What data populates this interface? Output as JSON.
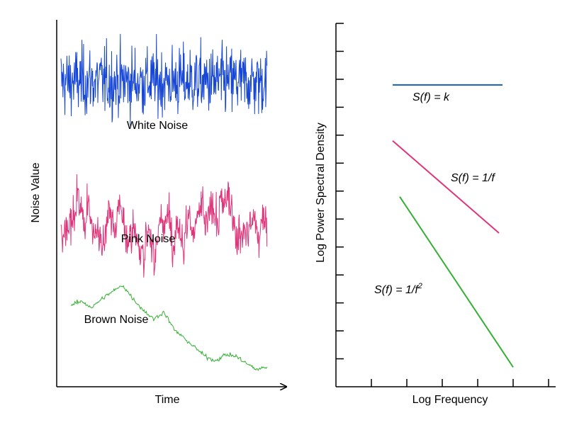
{
  "chart_data": [
    {
      "type": "line",
      "title": "",
      "xlabel": "Time",
      "ylabel": "Noise Value",
      "colors": {
        "white": "#1747d6",
        "pink": "#e0357a",
        "brown": "#35b035"
      },
      "series": [
        {
          "name": "White Noise",
          "color": "#1747d6",
          "label": "White Noise",
          "kind": "white",
          "x_range": [
            0,
            100
          ],
          "level": 3.3,
          "amplitude": 0.55
        },
        {
          "name": "Pink Noise",
          "color": "#e0357a",
          "label": "Pink Noise",
          "kind": "pink",
          "x_range": [
            0,
            100
          ],
          "level": 1.7,
          "amplitude": 0.55
        },
        {
          "name": "Brown Noise",
          "color": "#35b035",
          "label": "Brown Noise",
          "kind": "brown",
          "x_range": [
            5,
            100
          ],
          "x": [
            5,
            10,
            15,
            20,
            25,
            30,
            35,
            40,
            45,
            50,
            55,
            60,
            65,
            70,
            75,
            80,
            85,
            90,
            95,
            100
          ],
          "y": [
            0.78,
            0.82,
            0.75,
            0.85,
            0.93,
            1.0,
            0.85,
            0.72,
            0.62,
            0.7,
            0.5,
            0.4,
            0.3,
            0.2,
            0.15,
            0.22,
            0.2,
            0.12,
            0.05,
            0.08
          ]
        }
      ],
      "ylim": [
        0,
        3.9
      ],
      "xlim": [
        0,
        110
      ]
    },
    {
      "type": "line",
      "xlabel": "Log Frequency",
      "ylabel": "Log Power Spectral Density",
      "xlim": [
        0,
        6
      ],
      "ylim": [
        0,
        13
      ],
      "x_ticks": [
        1,
        2,
        3,
        4,
        5,
        6
      ],
      "y_ticks": [
        1,
        2,
        3,
        4,
        5,
        6,
        7,
        8,
        9,
        10,
        11,
        12,
        13
      ],
      "series": [
        {
          "name": "S(f) = k",
          "eq_main": "S(f) = k",
          "eq_sup": "",
          "color": "#1a5fa8",
          "x": [
            1.6,
            4.7
          ],
          "y": [
            10.8,
            10.8
          ]
        },
        {
          "name": "S(f) = 1/f",
          "eq_main": "S(f) = 1/f",
          "eq_sup": "",
          "color": "#e0357a",
          "x": [
            1.6,
            4.6
          ],
          "y": [
            8.8,
            5.5
          ]
        },
        {
          "name": "S(f) = 1/f2",
          "eq_main": "S(f) = 1/f",
          "eq_sup": "2",
          "color": "#35b035",
          "x": [
            1.8,
            5.0
          ],
          "y": [
            6.8,
            0.7
          ]
        }
      ]
    }
  ]
}
